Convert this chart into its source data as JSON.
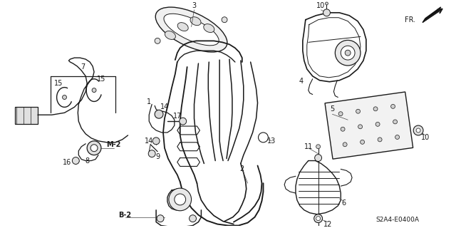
{
  "bg_color": "#ffffff",
  "fig_width": 6.4,
  "fig_height": 3.2,
  "dpi": 100,
  "diagram_code": "S2A4-E0400A"
}
